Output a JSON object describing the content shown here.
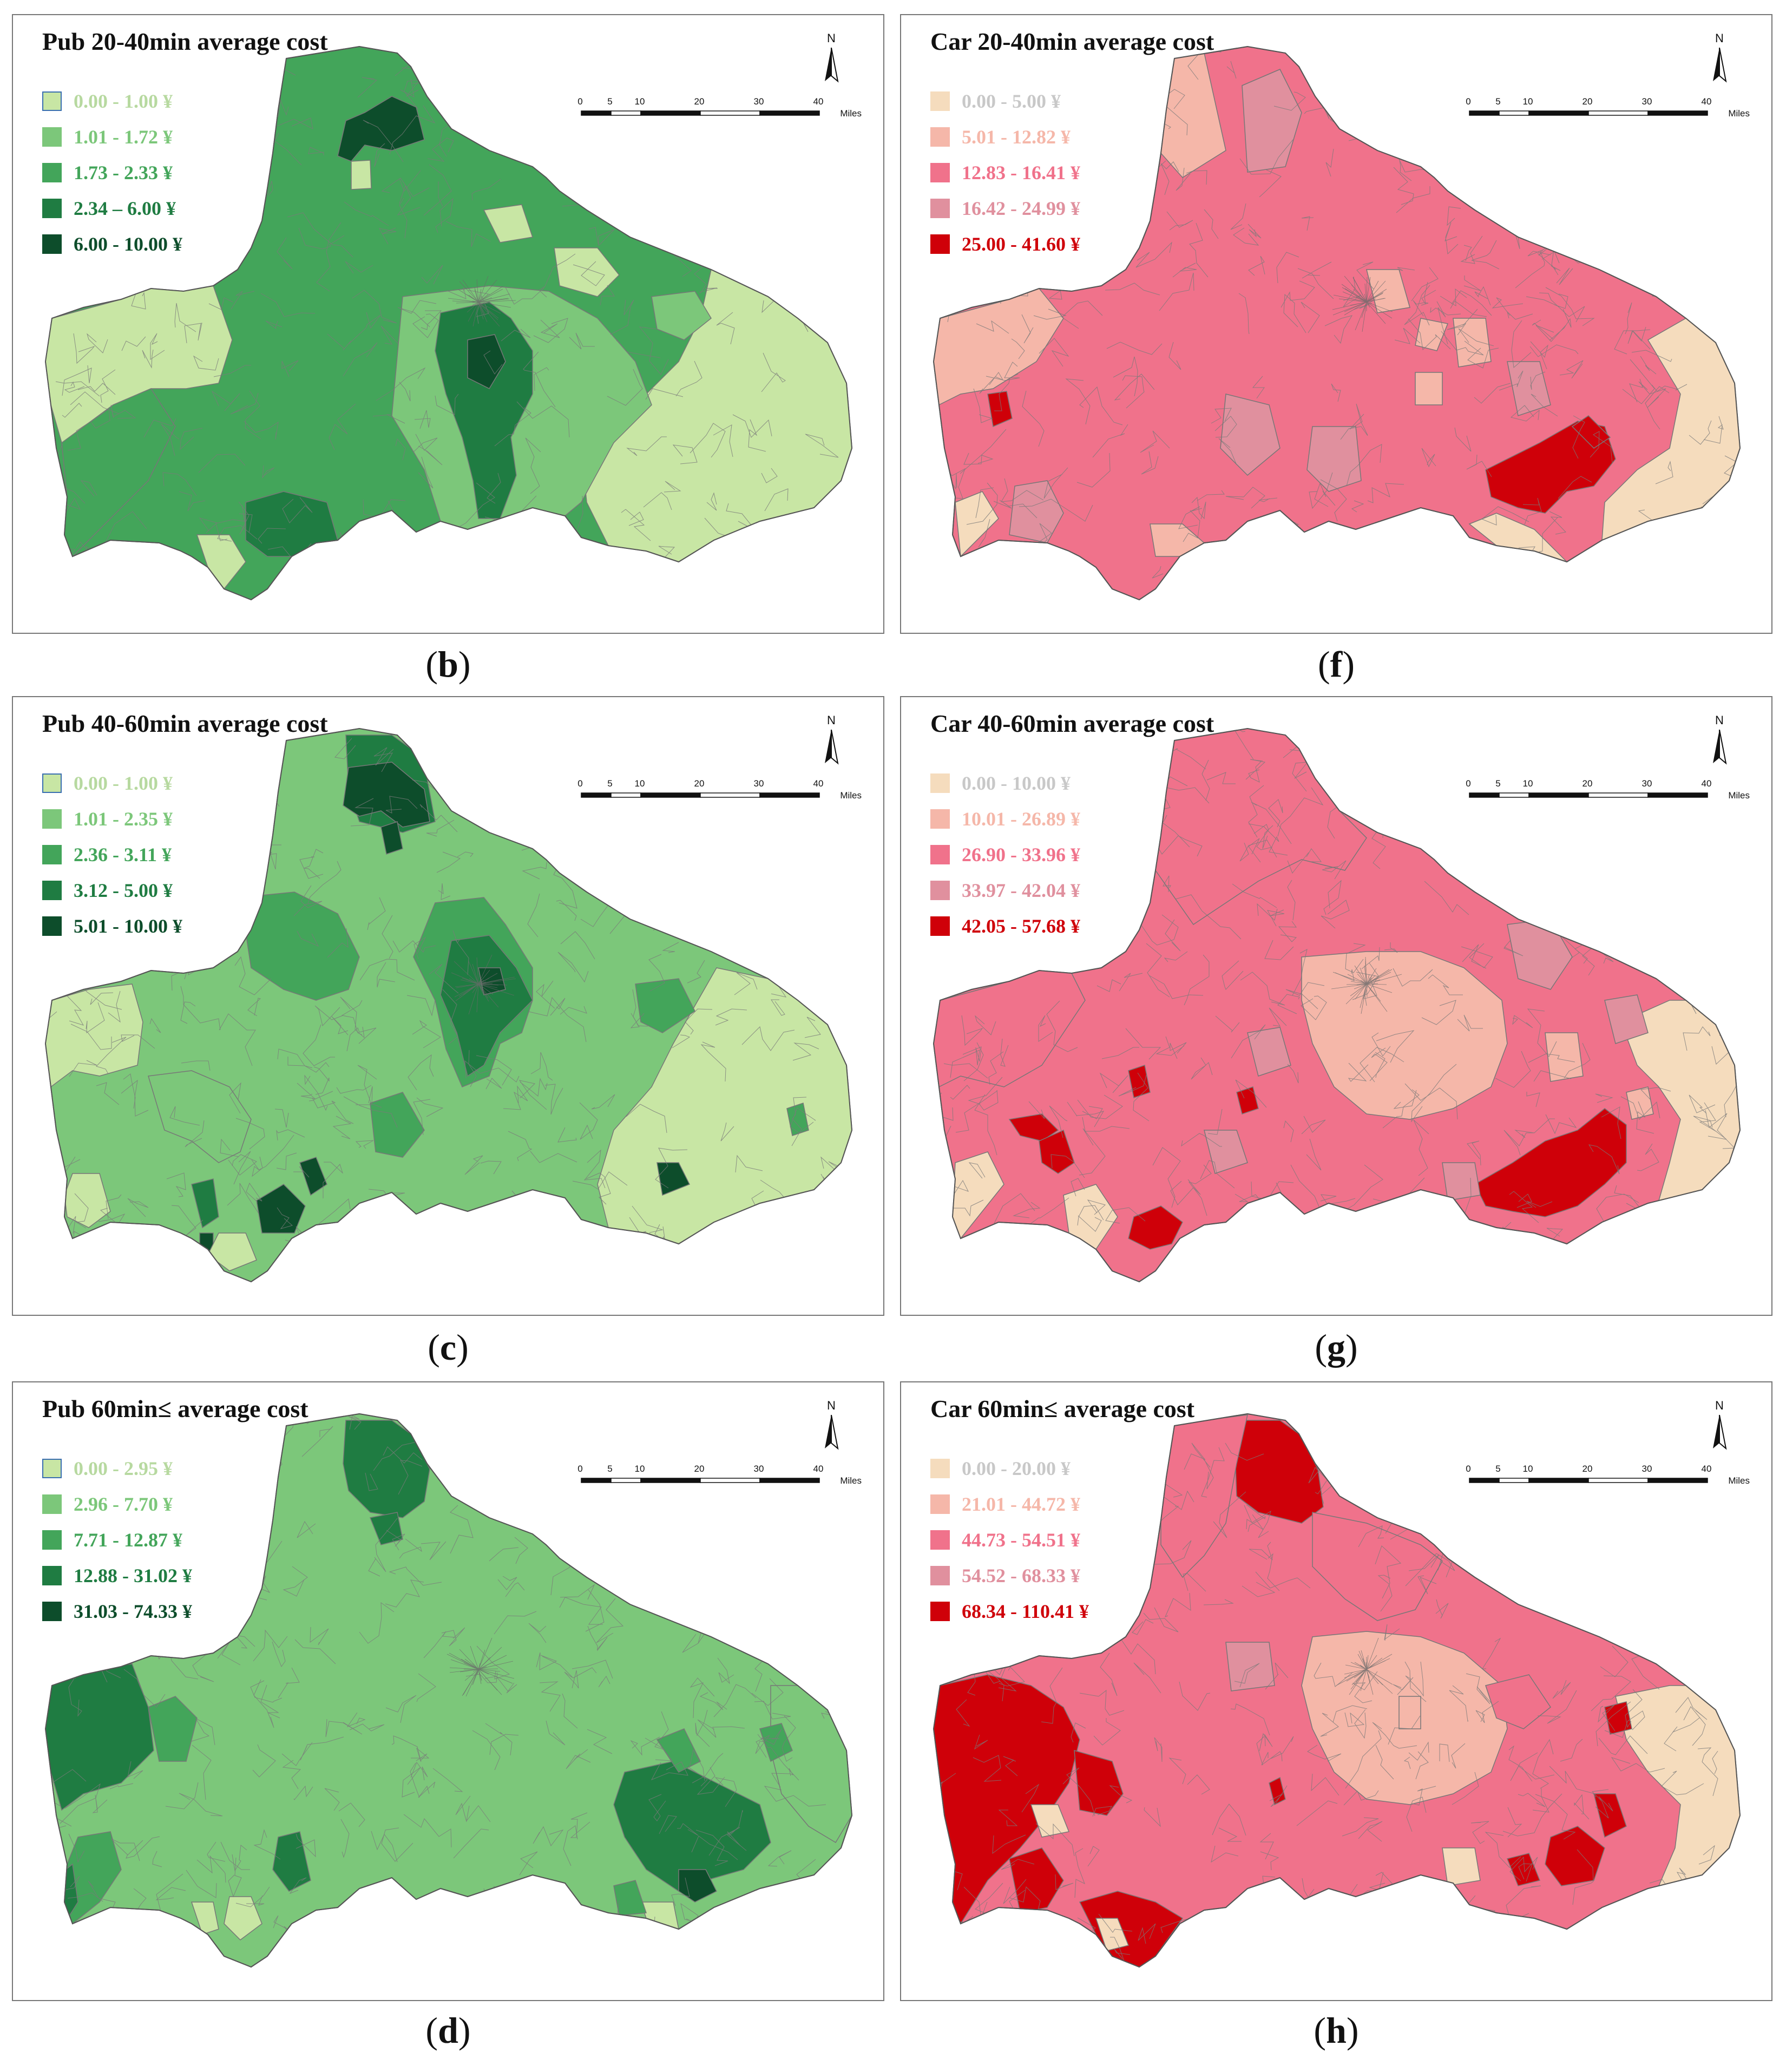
{
  "north_label": "N",
  "scale_bar": {
    "ticks": [
      "0",
      "5",
      "10",
      "20",
      "30",
      "40"
    ],
    "unit": "Miles"
  },
  "colors": {
    "pub": [
      "#c8e6a4",
      "#7cc77a",
      "#43a55a",
      "#1f7c42",
      "#0d4d2b"
    ],
    "car": [
      "#f5dcbd",
      "#f5b7a9",
      "#f0728b",
      "#e0909e",
      "#cf0009"
    ]
  },
  "panels": [
    {
      "id": "b",
      "caption": "b",
      "title": "Pub 20-40min average cost",
      "scheme": "pub",
      "legend": [
        "0.00 - 1.00 ¥",
        "1.01 - 1.72 ¥",
        "1.73 - 2.33 ¥",
        "2.34 – 6.00 ¥",
        "6.00 - 10.00 ¥"
      ]
    },
    {
      "id": "f",
      "caption": "f",
      "title": "Car 20-40min average cost",
      "scheme": "car",
      "legend": [
        "0.00 - 5.00 ¥",
        "5.01 - 12.82 ¥",
        "12.83 - 16.41 ¥",
        "16.42 - 24.99 ¥",
        "25.00 - 41.60 ¥"
      ]
    },
    {
      "id": "c",
      "caption": "c",
      "title": "Pub 40-60min average cost",
      "scheme": "pub",
      "legend": [
        "0.00 - 1.00 ¥",
        "1.01 - 2.35 ¥",
        "2.36 - 3.11 ¥",
        "3.12 - 5.00 ¥",
        "5.01 - 10.00 ¥"
      ]
    },
    {
      "id": "g",
      "caption": "g",
      "title": "Car 40-60min average cost",
      "scheme": "car",
      "legend": [
        "0.00 - 10.00 ¥",
        "10.01 - 26.89 ¥",
        "26.90 - 33.96 ¥",
        "33.97 - 42.04 ¥",
        "42.05 - 57.68 ¥"
      ]
    },
    {
      "id": "d",
      "caption": "d",
      "title": "Pub 60min≤ average cost",
      "scheme": "pub",
      "legend": [
        "0.00 - 2.95 ¥",
        "2.96 - 7.70 ¥",
        "7.71 - 12.87 ¥",
        "12.88 - 31.02 ¥",
        "31.03 - 74.33 ¥"
      ]
    },
    {
      "id": "h",
      "caption": "h",
      "title": "Car 60min≤ average cost",
      "scheme": "car",
      "legend": [
        "0.00 - 20.00 ¥",
        "21.01 - 44.72 ¥",
        "44.73 - 54.51 ¥",
        "54.52 - 68.33 ¥",
        "68.34 - 110.41 ¥"
      ]
    }
  ]
}
